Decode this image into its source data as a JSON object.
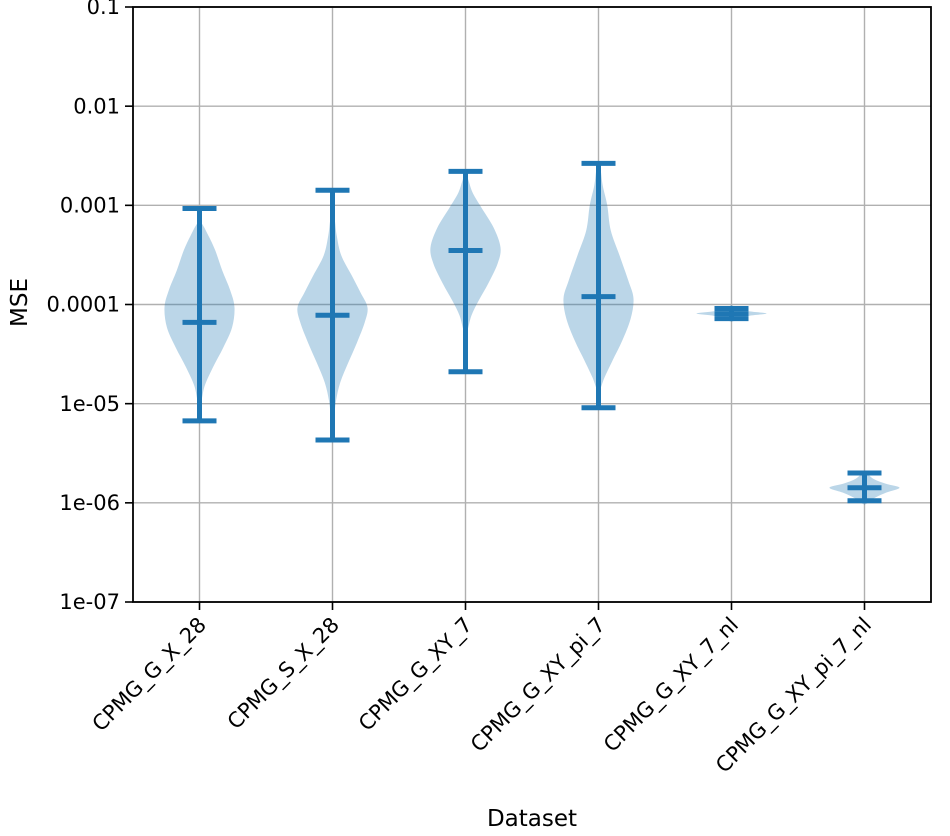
{
  "figure": {
    "xlabel": "Dataset",
    "ylabel": "MSE"
  },
  "chart_data": {
    "type": "violin",
    "title": "",
    "xlabel": "Dataset",
    "ylabel": "MSE",
    "yscale": "log",
    "ylim": [
      1e-07,
      0.1
    ],
    "ytick_labels": [
      "0.1",
      "0.01",
      "0.001",
      "0.0001",
      "1e-05",
      "1e-06",
      "1e-07"
    ],
    "ytick_values": [
      0.1,
      0.01,
      0.001,
      0.0001,
      1e-05,
      1e-06,
      1e-07
    ],
    "grid": true,
    "legend": "none",
    "categories": [
      "CPMG_G_X_28",
      "CPMG_S_X_28",
      "CPMG_G_XY_7",
      "CPMG_G_XY_pi_7",
      "CPMG_G_XY_7_nl",
      "CPMG_G_XY_pi_7_nl"
    ],
    "colors": {
      "line": "#1f77b4",
      "fill": "#1f77b4",
      "fill_opacity": 0.3,
      "grid": "#b0b0b0",
      "spine": "#000000",
      "text": "#000000"
    },
    "violins": [
      {
        "dataset": "CPMG_G_X_28",
        "max": 0.00093,
        "median": 6.6e-05,
        "min": 6.7e-06,
        "profile": [
          [
            0.000658,
            0.06
          ],
          [
            0.000498,
            0.25
          ],
          [
            0.000351,
            0.45
          ],
          [
            0.00022,
            0.65
          ],
          [
            0.000138,
            0.88
          ],
          [
            9.33e-05,
            1.0
          ],
          [
            5.86e-05,
            0.93
          ],
          [
            3.68e-05,
            0.68
          ],
          [
            2.31e-05,
            0.38
          ],
          [
            1.52e-05,
            0.15
          ],
          [
            1.07e-05,
            0.05
          ]
        ]
      },
      {
        "dataset": "CPMG_S_X_28",
        "max": 0.00142,
        "median": 7.8e-05,
        "min": 4.3e-06,
        "profile": [
          [
            0.000757,
            0.05
          ],
          [
            0.000498,
            0.12
          ],
          [
            0.000313,
            0.25
          ],
          [
            0.000196,
            0.55
          ],
          [
            0.000132,
            0.8
          ],
          [
            9.33e-05,
            1.0
          ],
          [
            6.58e-05,
            0.92
          ],
          [
            4.13e-05,
            0.7
          ],
          [
            2.59e-05,
            0.45
          ],
          [
            1.63e-05,
            0.22
          ],
          [
            1.07e-05,
            0.1
          ],
          [
            7.22e-06,
            0.04
          ]
        ]
      },
      {
        "dataset": "CPMG_G_XY_7",
        "max": 0.0022,
        "median": 0.00035,
        "min": 2.1e-05,
        "profile": [
          [
            0.00192,
            0.05
          ],
          [
            0.00135,
            0.2
          ],
          [
            0.000955,
            0.45
          ],
          [
            0.000599,
            0.8
          ],
          [
            0.000377,
            1.0
          ],
          [
            0.00026,
            0.92
          ],
          [
            0.000163,
            0.65
          ],
          [
            0.00011,
            0.38
          ],
          [
            7.74e-05,
            0.17
          ],
          [
            5.46e-05,
            0.05
          ]
        ]
      },
      {
        "dataset": "CPMG_G_XY_pi_7",
        "max": 0.00265,
        "median": 0.00012,
        "min": 9.1e-06,
        "profile": [
          [
            0.00237,
            0.05
          ],
          [
            0.00159,
            0.12
          ],
          [
            0.001,
            0.25
          ],
          [
            0.000559,
            0.35
          ],
          [
            0.000313,
            0.6
          ],
          [
            0.000175,
            0.85
          ],
          [
            0.000115,
            1.0
          ],
          [
            7.23e-05,
            0.92
          ],
          [
            4.33e-05,
            0.68
          ],
          [
            2.72e-05,
            0.4
          ],
          [
            1.83e-05,
            0.17
          ],
          [
            1.42e-05,
            0.05
          ]
        ]
      },
      {
        "dataset": "CPMG_G_XY_7_nl",
        "max": 9.1e-05,
        "median": 8.1e-05,
        "min": 7.2e-05,
        "profile": [
          [
            9.77e-05,
            0.03
          ],
          [
            8.9e-05,
            0.2
          ],
          [
            8.5e-05,
            0.55
          ],
          [
            8.11e-05,
            1.0
          ],
          [
            7.74e-05,
            0.55
          ],
          [
            7.23e-05,
            0.2
          ],
          [
            6.73e-05,
            0.03
          ]
        ]
      },
      {
        "dataset": "CPMG_G_XY_pi_7_nl",
        "max": 2e-06,
        "median": 1.42e-06,
        "min": 1.05e-06,
        "profile": [
          [
            2.01e-06,
            0.05
          ],
          [
            1.75e-06,
            0.25
          ],
          [
            1.56e-06,
            0.6
          ],
          [
            1.42e-06,
            1.0
          ],
          [
            1.26e-06,
            0.6
          ],
          [
            1.1e-06,
            0.25
          ],
          [
            9.77e-07,
            0.05
          ]
        ]
      }
    ]
  }
}
